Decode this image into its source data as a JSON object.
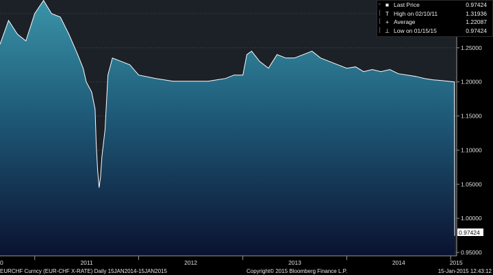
{
  "chart_data": {
    "type": "area",
    "ticker": "EURCHF Curncy (EUR-CHF X-RATE)",
    "period": "Daily 15JAN2014-15JAN2015",
    "x": [
      "2010-09",
      "2010-10",
      "2010-11",
      "2010-12",
      "2011-01",
      "2011-02",
      "2011-03",
      "2011-04",
      "2011-05",
      "2011-06",
      "2011-06-20",
      "2011-07",
      "2011-07-20",
      "2011-08",
      "2011-08-05",
      "2011-08-10",
      "2011-08-15",
      "2011-08-20",
      "2011-08-25",
      "2011-09-05",
      "2011-09-15",
      "2011-10",
      "2011-11",
      "2011-12",
      "2012-01",
      "2012-03",
      "2012-05",
      "2012-07",
      "2012-09",
      "2012-10",
      "2012-11",
      "2012-12",
      "2013-01",
      "2013-01-15",
      "2013-02",
      "2013-03",
      "2013-04",
      "2013-05",
      "2013-06",
      "2013-07",
      "2013-08",
      "2013-09",
      "2013-10",
      "2013-11",
      "2013-12",
      "2014-01",
      "2014-02",
      "2014-03",
      "2014-04",
      "2014-05",
      "2014-06",
      "2014-07",
      "2014-08",
      "2014-09",
      "2014-10",
      "2014-11",
      "2014-12",
      "2015-01-14",
      "2015-01-15"
    ],
    "y": [
      1.255,
      1.29,
      1.27,
      1.26,
      1.3,
      1.31936,
      1.3,
      1.295,
      1.27,
      1.24,
      1.22,
      1.2,
      1.185,
      1.16,
      1.11,
      1.07,
      1.045,
      1.06,
      1.09,
      1.13,
      1.21,
      1.235,
      1.23,
      1.225,
      1.21,
      1.205,
      1.201,
      1.201,
      1.201,
      1.203,
      1.205,
      1.21,
      1.21,
      1.24,
      1.245,
      1.23,
      1.22,
      1.24,
      1.235,
      1.235,
      1.24,
      1.245,
      1.235,
      1.23,
      1.225,
      1.22,
      1.222,
      1.215,
      1.218,
      1.215,
      1.218,
      1.212,
      1.21,
      1.208,
      1.205,
      1.203,
      1.202,
      1.2,
      0.97424
    ],
    "ylim": [
      0.945,
      1.32
    ],
    "yticks": [
      "1.30000",
      "1.25000",
      "1.20000",
      "1.15000",
      "1.10000",
      "1.05000",
      "1.00000",
      "0.95000"
    ],
    "xtick_labels": [
      "2011",
      "2012",
      "2013",
      "2014",
      "2015"
    ],
    "xtick_left": "0",
    "last_label": "0.97424",
    "legend": [
      {
        "symbol": "■",
        "label": "Last Price",
        "value": "0.97424"
      },
      {
        "symbol": "T",
        "label": "High on 02/10/11",
        "value": "1.31936"
      },
      {
        "symbol": "+",
        "label": "Average",
        "value": "1.22087"
      },
      {
        "symbol": "⊥",
        "label": "Low on 01/15/15",
        "value": "0.97424"
      }
    ],
    "colors": {
      "line": "#ffffff",
      "area_top": "#3a93a8",
      "area_bottom": "#0a1230",
      "plot_bg": "#1c2127",
      "grid": "#3a4048"
    }
  },
  "footer": {
    "left": "EURCHF Curncy (EUR-CHF X-RATE)  Daily 15JAN2014-15JAN2015",
    "center": "Copyright© 2015 Bloomberg Finance L.P.",
    "right": "15-Jan-2015 12:43:12"
  }
}
